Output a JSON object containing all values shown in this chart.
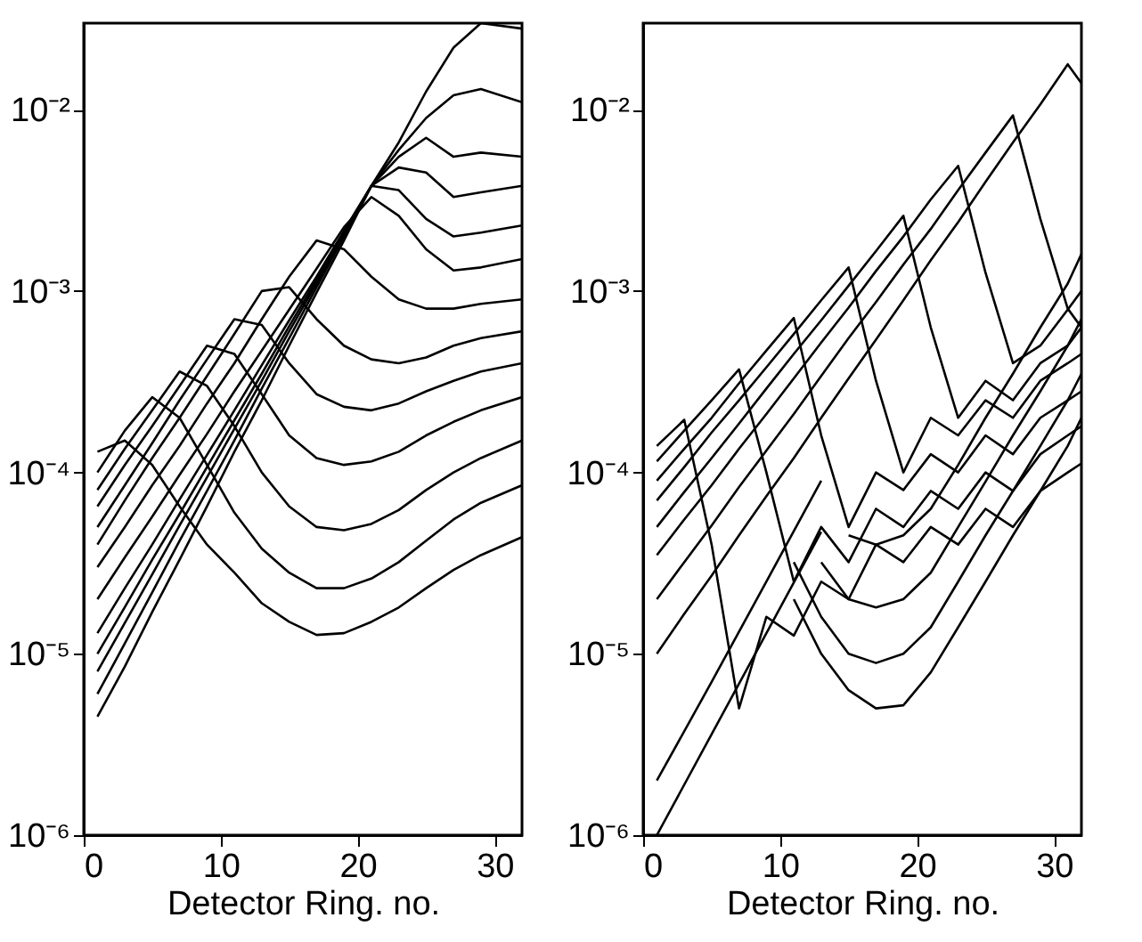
{
  "chart_data": [
    {
      "type": "line",
      "xlabel": "Detector Ring. no.",
      "xlim": [
        0,
        32
      ],
      "xticks": [
        0,
        10,
        20,
        30
      ],
      "ylim": [
        1e-06,
        0.03
      ],
      "yticks": [
        {
          "value": 1e-06,
          "label": "10⁻⁶"
        },
        {
          "value": 1e-05,
          "label": "10⁻⁵"
        },
        {
          "value": 0.0001,
          "label": "10⁻⁴"
        },
        {
          "value": 0.001,
          "label": "10⁻³"
        },
        {
          "value": 0.01,
          "label": "10⁻²"
        }
      ],
      "log": "y",
      "grid": false,
      "marker": "none",
      "line_style": "solid",
      "x": [
        1,
        3,
        5,
        7,
        9,
        11,
        13,
        15,
        17,
        19,
        21,
        23,
        25,
        27,
        29,
        32
      ],
      "series": [
        {
          "color": "#000000",
          "values": [
            4.5e-06,
            8.5e-06,
            1.7e-05,
            3.3e-05,
            6.5e-05,
            0.00013,
            0.00025,
            0.0005,
            0.00098,
            0.0019,
            0.0038,
            0.0066,
            0.0126,
            0.022,
            0.03,
            0.028
          ]
        },
        {
          "color": "#000000",
          "values": [
            6e-06,
            1.14e-05,
            2.18e-05,
            4.2e-05,
            7.9e-05,
            0.00015,
            0.00029,
            0.00055,
            0.00105,
            0.002,
            0.0038,
            0.006,
            0.009,
            0.012,
            0.013,
            0.011
          ]
        },
        {
          "color": "#000000",
          "values": [
            8e-06,
            1.48e-05,
            2.74e-05,
            5.1e-05,
            9.4e-05,
            0.000174,
            0.00032,
            0.0006,
            0.0011,
            0.00205,
            0.0038,
            0.0055,
            0.007,
            0.0055,
            0.0058,
            0.0055
          ]
        },
        {
          "color": "#000000",
          "values": [
            1e-05,
            1.81e-05,
            3.3e-05,
            5.9e-05,
            0.000107,
            0.000194,
            0.00035,
            0.00064,
            0.00115,
            0.0021,
            0.0038,
            0.0048,
            0.0045,
            0.0033,
            0.0035,
            0.0038
          ]
        },
        {
          "color": "#000000",
          "values": [
            1.3e-05,
            2.3e-05,
            4e-05,
            7.1e-05,
            0.000125,
            0.00022,
            0.00039,
            0.00069,
            0.0012,
            0.00215,
            0.0038,
            0.0036,
            0.0025,
            0.002,
            0.0021,
            0.0023
          ]
        },
        {
          "color": "#000000",
          "values": [
            2e-05,
            3.4e-05,
            5.7e-05,
            9.7e-05,
            0.000163,
            0.00028,
            0.00047,
            0.00079,
            0.00133,
            0.00225,
            0.0033,
            0.0026,
            0.0017,
            0.0013,
            0.00135,
            0.0015
          ]
        },
        {
          "color": "#000000",
          "values": [
            3e-05,
            5e-05,
            8.5e-05,
            0.00014,
            0.00024,
            0.0004,
            0.0007,
            0.0012,
            0.0019,
            0.0017,
            0.0012,
            0.0009,
            0.0008,
            0.0008,
            0.00085,
            0.0009
          ]
        },
        {
          "color": "#000000",
          "values": [
            4e-05,
            7e-05,
            0.00012,
            0.0002,
            0.00034,
            0.00058,
            0.001,
            0.00105,
            0.0007,
            0.0005,
            0.00042,
            0.0004,
            0.00043,
            0.0005,
            0.00055,
            0.0006
          ]
        },
        {
          "color": "#000000",
          "values": [
            5e-05,
            8.5e-05,
            0.000145,
            0.00025,
            0.00042,
            0.0007,
            0.00065,
            0.0004,
            0.00027,
            0.00023,
            0.00022,
            0.00024,
            0.00028,
            0.00032,
            0.00036,
            0.0004
          ]
        },
        {
          "color": "#000000",
          "values": [
            6.5e-05,
            0.00011,
            0.00018,
            0.0003,
            0.0005,
            0.00045,
            0.00027,
            0.00016,
            0.00012,
            0.00011,
            0.000115,
            0.00013,
            0.00016,
            0.00019,
            0.00022,
            0.00026
          ]
        },
        {
          "color": "#000000",
          "values": [
            8e-05,
            0.000135,
            0.00022,
            0.00036,
            0.0003,
            0.00018,
            0.0001,
            6.5e-05,
            5e-05,
            4.8e-05,
            5.2e-05,
            6.2e-05,
            8e-05,
            0.0001,
            0.00012,
            0.00015
          ]
        },
        {
          "color": "#000000",
          "values": [
            0.0001,
            0.00017,
            0.00026,
            0.0002,
            0.00011,
            6e-05,
            3.8e-05,
            2.8e-05,
            2.3e-05,
            2.3e-05,
            2.6e-05,
            3.2e-05,
            4.2e-05,
            5.5e-05,
            6.8e-05,
            8.5e-05
          ]
        },
        {
          "color": "#000000",
          "values": [
            0.00013,
            0.00015,
            0.00011,
            6.5e-05,
            4e-05,
            2.8e-05,
            1.9e-05,
            1.5e-05,
            1.27e-05,
            1.3e-05,
            1.5e-05,
            1.8e-05,
            2.3e-05,
            2.9e-05,
            3.5e-05,
            4.4e-05
          ]
        }
      ]
    },
    {
      "type": "line",
      "xlabel": "Detector Ring. no.",
      "xlim": [
        0,
        32
      ],
      "xticks": [
        0,
        10,
        20,
        30
      ],
      "ylim": [
        1e-06,
        0.03
      ],
      "yticks": [
        {
          "value": 1e-06,
          "label": "10⁻⁶"
        },
        {
          "value": 1e-05,
          "label": "10⁻⁵"
        },
        {
          "value": 0.0001,
          "label": "10⁻⁴"
        },
        {
          "value": 0.001,
          "label": "10⁻³"
        },
        {
          "value": 0.01,
          "label": "10⁻²"
        }
      ],
      "log": "y",
      "grid": false,
      "marker": "none",
      "line_style": "solid",
      "x": [
        1,
        3,
        5,
        7,
        9,
        11,
        13,
        15,
        17,
        19,
        21,
        23,
        25,
        27,
        29,
        31,
        32
      ],
      "series": [
        {
          "color": "#000000",
          "values": [
            1e-05,
            1.66e-05,
            2.7e-05,
            4.5e-05,
            7.4e-05,
            0.00012,
            0.0002,
            0.00033,
            0.00054,
            0.00089,
            0.00148,
            0.0024,
            0.004,
            0.0066,
            0.0107,
            0.0178,
            0.014
          ]
        },
        {
          "color": "#000000",
          "values": [
            2e-05,
            3.2e-05,
            5.1e-05,
            8.3e-05,
            0.000132,
            0.00021,
            0.00034,
            0.00055,
            0.00087,
            0.0014,
            0.0022,
            0.0036,
            0.0058,
            0.0093,
            0.0025,
            0.0008,
            0.00063
          ]
        },
        {
          "color": "#000000",
          "values": [
            3.5e-05,
            5.5e-05,
            8.5e-05,
            0.000135,
            0.00021,
            0.00033,
            0.00052,
            0.00081,
            0.00129,
            0.002,
            0.0032,
            0.0049,
            0.00126,
            0.0004,
            0.0005,
            0.00079,
            0.001
          ]
        },
        {
          "color": "#000000",
          "values": [
            5e-05,
            7.8e-05,
            0.00012,
            0.000186,
            0.00029,
            0.00045,
            0.00069,
            0.00107,
            0.00166,
            0.0026,
            0.00063,
            0.0002,
            0.00032,
            0.00025,
            0.0004,
            0.0005,
            0.00063
          ]
        },
        {
          "color": "#000000",
          "values": [
            7e-05,
            0.000107,
            0.000166,
            0.00025,
            0.00038,
            0.00058,
            0.00089,
            0.00135,
            0.00032,
            0.0001,
            0.0002,
            0.00016,
            0.00025,
            0.0002,
            0.00032,
            0.0004,
            0.00045
          ]
        },
        {
          "color": "#000000",
          "values": [
            9e-05,
            0.000135,
            0.0002,
            0.00031,
            0.00047,
            0.00071,
            0.00016,
            5e-05,
            0.0001,
            8e-05,
            0.000126,
            0.0001,
            0.00016,
            0.000126,
            0.0002,
            0.00025,
            0.00028
          ]
        },
        {
          "color": "#000000",
          "values": [
            0.000115,
            0.00017,
            0.00025,
            0.00037,
            0.0001,
            2.5e-05,
            5e-05,
            3.2e-05,
            6.3e-05,
            5e-05,
            7.9e-05,
            6.3e-05,
            0.0001,
            7.9e-05,
            0.000126,
            0.00016,
            0.00018
          ]
        },
        {
          "color": "#000000",
          "values": [
            0.00014,
            0.000195,
            4e-05,
            5e-06,
            1.6e-05,
            1.26e-05,
            2.5e-05,
            2e-05,
            4e-05,
            3.2e-05,
            5e-05,
            4e-05,
            6.3e-05,
            5e-05,
            7.9e-05,
            0.0001,
            0.000112
          ]
        },
        {
          "color": "#000000",
          "x": [
            11,
            13,
            15,
            17,
            19,
            21,
            23,
            25,
            27,
            29,
            31,
            32
          ],
          "values": [
            2e-05,
            1e-05,
            6.3e-06,
            5e-06,
            5.2e-06,
            7.9e-06,
            1.4e-05,
            2.5e-05,
            4.5e-05,
            7.9e-05,
            0.00014,
            0.0002
          ]
        },
        {
          "color": "#000000",
          "x": [
            11,
            13,
            15,
            17,
            19,
            21,
            23,
            25,
            27,
            29,
            31,
            32
          ],
          "values": [
            3.2e-05,
            1.6e-05,
            1e-05,
            8.9e-06,
            1e-05,
            1.4e-05,
            2.5e-05,
            4.5e-05,
            7.9e-05,
            0.00014,
            0.00025,
            0.00035
          ]
        },
        {
          "color": "#000000",
          "x": [
            13,
            15,
            17,
            19,
            21,
            23,
            25,
            27,
            29,
            31,
            32
          ],
          "values": [
            3.2e-05,
            2e-05,
            1.8e-05,
            2e-05,
            2.8e-05,
            5e-05,
            8.9e-05,
            0.00016,
            0.00028,
            0.0005,
            0.0007
          ]
        },
        {
          "color": "#000000",
          "x": [
            15,
            17,
            19,
            21,
            23,
            25,
            27,
            29,
            31,
            32
          ],
          "values": [
            4.5e-05,
            4e-05,
            4.5e-05,
            6.3e-05,
            0.00011,
            0.0002,
            0.00035,
            0.00063,
            0.0011,
            0.0016
          ]
        },
        {
          "color": "#000000",
          "x": [
            1,
            5,
            9,
            13
          ],
          "values": [
            1e-06,
            3.6e-06,
            1.3e-05,
            4.7e-05
          ]
        },
        {
          "color": "#000000",
          "x": [
            1,
            5,
            9,
            13
          ],
          "values": [
            2e-06,
            7e-06,
            2.5e-05,
            9e-05
          ]
        }
      ]
    }
  ]
}
